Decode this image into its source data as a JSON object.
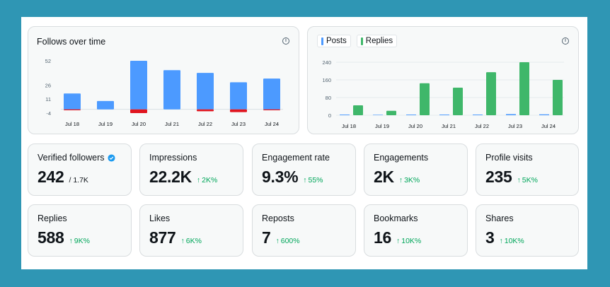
{
  "follows_chart": {
    "title": "Follows over time",
    "info_icon": "info-icon",
    "chart_data": {
      "type": "bar",
      "categories": [
        "Jul 18",
        "Jul 19",
        "Jul 20",
        "Jul 21",
        "Jul 22",
        "Jul 23",
        "Jul 24"
      ],
      "series": [
        {
          "values": [
            17,
            9,
            52,
            42,
            39,
            29,
            33
          ],
          "color": "#4c9aff"
        },
        {
          "values": [
            -1,
            0,
            -4,
            0,
            -2,
            -3,
            -1
          ],
          "color": "#e0151f"
        }
      ],
      "y_ticks": [
        "52",
        "26",
        "11",
        "-4"
      ],
      "ylim": [
        -4,
        52
      ],
      "grid": false
    }
  },
  "posts_chart": {
    "legend": {
      "posts_label": "Posts",
      "replies_label": "Replies"
    },
    "info_icon": "info-icon",
    "chart_data": {
      "type": "bar",
      "categories": [
        "Jul 18",
        "Jul 19",
        "Jul 20",
        "Jul 21",
        "Jul 22",
        "Jul 23",
        "Jul 24"
      ],
      "series": [
        {
          "name": "Posts",
          "values": [
            3,
            2,
            3,
            3,
            3,
            5,
            4
          ],
          "color": "#4c9aff"
        },
        {
          "name": "Replies",
          "values": [
            45,
            20,
            145,
            125,
            195,
            240,
            160
          ],
          "color": "#3fb76a"
        }
      ],
      "y_ticks": [
        "240",
        "160",
        "80",
        "0"
      ],
      "ylim": [
        0,
        240
      ],
      "grid": true
    }
  },
  "stats": [
    {
      "label": "Verified followers",
      "value": "242",
      "total": "/ 1.7K",
      "verified_icon": "verified-badge-icon"
    },
    {
      "label": "Impressions",
      "value": "22.2K",
      "delta": "2K%"
    },
    {
      "label": "Engagement rate",
      "value": "9.3%",
      "delta": "55%"
    },
    {
      "label": "Engagements",
      "value": "2K",
      "delta": "3K%"
    },
    {
      "label": "Profile visits",
      "value": "235",
      "delta": "5K%"
    },
    {
      "label": "Replies",
      "value": "588",
      "delta": "9K%"
    },
    {
      "label": "Likes",
      "value": "877",
      "delta": "6K%"
    },
    {
      "label": "Reposts",
      "value": "7",
      "delta": "600%"
    },
    {
      "label": "Bookmarks",
      "value": "16",
      "delta": "10K%"
    },
    {
      "label": "Shares",
      "value": "3",
      "delta": "10K%"
    }
  ],
  "colors": {
    "background": "#2f96b4",
    "up_green": "#00a65a",
    "verified_blue": "#1d9bf0"
  },
  "delta_icon": "arrow-up-icon"
}
